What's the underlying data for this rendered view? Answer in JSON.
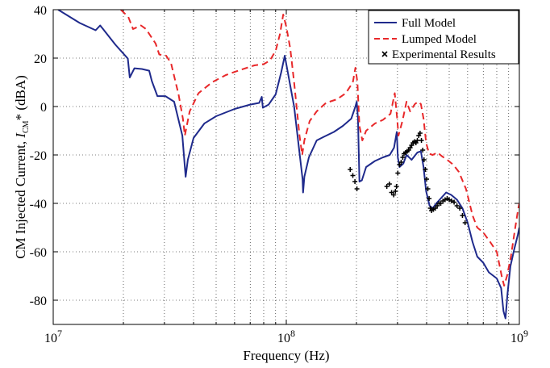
{
  "chart_data": {
    "type": "line",
    "xlabel": "Frequency (Hz)",
    "ylabel_prefix": "CM Injected Current, ",
    "ylabel_symbol": "I",
    "ylabel_subscript": "CM",
    "ylabel_suffix": "* (dBA)",
    "x_scale": "log",
    "xlim": [
      10000000,
      1000000000
    ],
    "ylim": [
      -90,
      40
    ],
    "grid": true,
    "legend_position": "top-right",
    "x_ticks": [
      {
        "value": 10000000,
        "base": "10",
        "exp": "7"
      },
      {
        "value": 100000000,
        "base": "10",
        "exp": "8"
      },
      {
        "value": 1000000000,
        "base": "10",
        "exp": "9"
      }
    ],
    "y_ticks": [
      {
        "value": 40,
        "label": "40"
      },
      {
        "value": 20,
        "label": "20"
      },
      {
        "value": 0,
        "label": "0"
      },
      {
        "value": -20,
        "label": "-20"
      },
      {
        "value": -40,
        "label": "-40"
      },
      {
        "value": -60,
        "label": "-60"
      },
      {
        "value": -80,
        "label": "-80"
      }
    ],
    "series": [
      {
        "name": "Full Model",
        "style": "solid",
        "color": "#1f2a8c",
        "points": [
          [
            10500000,
            40
          ],
          [
            13000000,
            34.5
          ],
          [
            15200000,
            31.5
          ],
          [
            15900000,
            33.5
          ],
          [
            18500000,
            25.5
          ],
          [
            20900000,
            19.8
          ],
          [
            21300000,
            12
          ],
          [
            22300000,
            15.8
          ],
          [
            24000000,
            15.5
          ],
          [
            25800000,
            14.8
          ],
          [
            26500000,
            10.5
          ],
          [
            28000000,
            4.3
          ],
          [
            30300000,
            4.3
          ],
          [
            33000000,
            2
          ],
          [
            35800000,
            -12
          ],
          [
            36500000,
            -22
          ],
          [
            37000000,
            -29
          ],
          [
            37800000,
            -22
          ],
          [
            40000000,
            -13
          ],
          [
            44500000,
            -7
          ],
          [
            50000000,
            -4
          ],
          [
            60000000,
            -1
          ],
          [
            70000000,
            0.8
          ],
          [
            76500000,
            1.5
          ],
          [
            78500000,
            4
          ],
          [
            79300000,
            -0.5
          ],
          [
            84000000,
            0.8
          ],
          [
            90000000,
            5
          ],
          [
            95000000,
            14
          ],
          [
            98500000,
            21
          ],
          [
            102000000,
            13
          ],
          [
            108000000,
            0
          ],
          [
            113000000,
            -16
          ],
          [
            117500000,
            -30
          ],
          [
            118000000,
            -35.5
          ],
          [
            119500000,
            -29
          ],
          [
            125000000,
            -21
          ],
          [
            135000000,
            -14
          ],
          [
            145000000,
            -12.5
          ],
          [
            160000000,
            -10.5
          ],
          [
            175000000,
            -8
          ],
          [
            190000000,
            -5
          ],
          [
            198000000,
            0
          ],
          [
            200500000,
            2
          ],
          [
            203000000,
            -5
          ],
          [
            206000000,
            -31
          ],
          [
            211000000,
            -30.5
          ],
          [
            220000000,
            -25
          ],
          [
            240000000,
            -22.5
          ],
          [
            260000000,
            -21
          ],
          [
            278000000,
            -20
          ],
          [
            290000000,
            -17
          ],
          [
            298000000,
            -10.5
          ],
          [
            301000000,
            -21
          ],
          [
            306000000,
            -25
          ],
          [
            318000000,
            -23.5
          ],
          [
            328000000,
            -20
          ],
          [
            345000000,
            -22
          ],
          [
            365000000,
            -19
          ],
          [
            378000000,
            -18.5
          ],
          [
            388000000,
            -25
          ],
          [
            398000000,
            -35
          ],
          [
            412000000,
            -41
          ],
          [
            425000000,
            -42
          ],
          [
            440000000,
            -40
          ],
          [
            460000000,
            -38
          ],
          [
            485000000,
            -35.5
          ],
          [
            510000000,
            -36.5
          ],
          [
            540000000,
            -38.5
          ],
          [
            570000000,
            -42
          ],
          [
            600000000,
            -48
          ],
          [
            630000000,
            -56
          ],
          [
            660000000,
            -62
          ],
          [
            700000000,
            -64.5
          ],
          [
            740000000,
            -68.5
          ],
          [
            800000000,
            -71
          ],
          [
            835000000,
            -75
          ],
          [
            855000000,
            -84.5
          ],
          [
            872000000,
            -87.5
          ],
          [
            890000000,
            -77
          ],
          [
            915000000,
            -66
          ],
          [
            950000000,
            -59
          ],
          [
            985000000,
            -53
          ],
          [
            1000000000,
            -50
          ]
        ]
      },
      {
        "name": "Lumped Model",
        "style": "dashed",
        "color": "#e8282a",
        "points": [
          [
            19500000,
            40
          ],
          [
            21000000,
            37
          ],
          [
            22000000,
            32
          ],
          [
            23800000,
            33.5
          ],
          [
            25000000,
            32
          ],
          [
            27500000,
            26
          ],
          [
            28500000,
            21.5
          ],
          [
            30500000,
            21
          ],
          [
            32000000,
            18
          ],
          [
            34500000,
            5
          ],
          [
            36000000,
            -5
          ],
          [
            36700000,
            -12
          ],
          [
            38500000,
            -2
          ],
          [
            42000000,
            5.5
          ],
          [
            48000000,
            10
          ],
          [
            55000000,
            13
          ],
          [
            63000000,
            15
          ],
          [
            73000000,
            17
          ],
          [
            80000000,
            17.5
          ],
          [
            85000000,
            19
          ],
          [
            90000000,
            23
          ],
          [
            94000000,
            30
          ],
          [
            97000000,
            38
          ],
          [
            100000000,
            33
          ],
          [
            104000000,
            24
          ],
          [
            108000000,
            10
          ],
          [
            114000000,
            -12
          ],
          [
            117000000,
            -20
          ],
          [
            119500000,
            -14
          ],
          [
            126000000,
            -6
          ],
          [
            135000000,
            -2
          ],
          [
            148000000,
            1.5
          ],
          [
            165000000,
            3
          ],
          [
            180000000,
            5.5
          ],
          [
            193000000,
            10
          ],
          [
            198000000,
            16
          ],
          [
            202000000,
            10
          ],
          [
            206000000,
            -8
          ],
          [
            212000000,
            -14
          ],
          [
            220000000,
            -10
          ],
          [
            240000000,
            -7
          ],
          [
            260000000,
            -5.5
          ],
          [
            280000000,
            -3
          ],
          [
            292000000,
            5.5
          ],
          [
            299000000,
            -5
          ],
          [
            303000000,
            -12
          ],
          [
            315000000,
            -6
          ],
          [
            328000000,
            2
          ],
          [
            340000000,
            -2
          ],
          [
            356000000,
            1
          ],
          [
            368000000,
            2
          ],
          [
            378000000,
            1
          ],
          [
            388000000,
            -5
          ],
          [
            398000000,
            -15
          ],
          [
            410000000,
            -19.5
          ],
          [
            425000000,
            -20
          ],
          [
            445000000,
            -19
          ],
          [
            465000000,
            -20.5
          ],
          [
            490000000,
            -22
          ],
          [
            520000000,
            -24
          ],
          [
            550000000,
            -27
          ],
          [
            590000000,
            -34
          ],
          [
            630000000,
            -45
          ],
          [
            660000000,
            -50
          ],
          [
            700000000,
            -52
          ],
          [
            750000000,
            -56
          ],
          [
            800000000,
            -60
          ],
          [
            840000000,
            -70
          ],
          [
            860000000,
            -74
          ],
          [
            885000000,
            -70
          ],
          [
            920000000,
            -62
          ],
          [
            960000000,
            -50
          ],
          [
            990000000,
            -42
          ],
          [
            1000000000,
            -40
          ]
        ]
      },
      {
        "name": "Experimental Results",
        "style": "markers",
        "color": "#000000",
        "points": [
          [
            188000000,
            -26
          ],
          [
            193000000,
            -28.5
          ],
          [
            197000000,
            -31
          ],
          [
            201000000,
            -34
          ],
          [
            270000000,
            -33
          ],
          [
            277000000,
            -32
          ],
          [
            283000000,
            -35.5
          ],
          [
            289000000,
            -36.5
          ],
          [
            294000000,
            -35
          ],
          [
            297000000,
            -33
          ],
          [
            301000000,
            -27.5
          ],
          [
            306000000,
            -24
          ],
          [
            311000000,
            -23
          ],
          [
            316000000,
            -21
          ],
          [
            320000000,
            -19.5
          ],
          [
            325000000,
            -19
          ],
          [
            330000000,
            -18.5
          ],
          [
            335000000,
            -18
          ],
          [
            340000000,
            -17
          ],
          [
            345000000,
            -16
          ],
          [
            350000000,
            -15
          ],
          [
            355000000,
            -14.5
          ],
          [
            360000000,
            -15
          ],
          [
            365000000,
            -14
          ],
          [
            370000000,
            -12
          ],
          [
            375000000,
            -11
          ],
          [
            380000000,
            -14
          ],
          [
            385000000,
            -18
          ],
          [
            390000000,
            -22
          ],
          [
            395000000,
            -26
          ],
          [
            400000000,
            -30
          ],
          [
            405000000,
            -34
          ],
          [
            410000000,
            -38
          ],
          [
            415000000,
            -42
          ],
          [
            420000000,
            -43
          ],
          [
            428000000,
            -42.5
          ],
          [
            436000000,
            -42
          ],
          [
            444000000,
            -41
          ],
          [
            452000000,
            -40
          ],
          [
            460000000,
            -40
          ],
          [
            470000000,
            -39
          ],
          [
            480000000,
            -38.5
          ],
          [
            490000000,
            -38
          ],
          [
            500000000,
            -38.5
          ],
          [
            512000000,
            -39
          ],
          [
            525000000,
            -39.5
          ],
          [
            540000000,
            -41
          ],
          [
            555000000,
            -42
          ],
          [
            570000000,
            -45
          ],
          [
            585000000,
            -48
          ]
        ]
      }
    ]
  }
}
